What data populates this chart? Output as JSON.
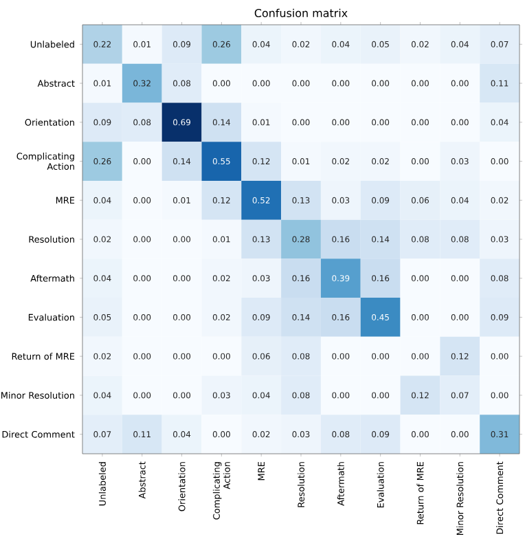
{
  "chart_data": {
    "type": "heatmap",
    "title": "Confusion matrix",
    "categories": [
      "Unlabeled",
      "Abstract",
      "Orientation",
      "Complicating Action",
      "MRE",
      "Resolution",
      "Aftermath",
      "Evaluation",
      "Return of MRE",
      "Minor Resolution",
      "Direct Comment"
    ],
    "y_categories": [
      "Unlabeled",
      "Abstract",
      "Orientation",
      "Complicating Action",
      "MRE",
      "Resolution",
      "Aftermath",
      "Evaluation",
      "Return of MRE",
      "Minor Resolution",
      "Direct Comment"
    ],
    "cells": [
      [
        0.22,
        0.01,
        0.09,
        0.26,
        0.04,
        0.02,
        0.04,
        0.05,
        0.02,
        0.04,
        0.07
      ],
      [
        0.01,
        0.32,
        0.08,
        0.0,
        0.0,
        0.0,
        0.0,
        0.0,
        0.0,
        0.0,
        0.11
      ],
      [
        0.09,
        0.08,
        0.69,
        0.14,
        0.01,
        0.0,
        0.0,
        0.0,
        0.0,
        0.0,
        0.04
      ],
      [
        0.26,
        0.0,
        0.14,
        0.55,
        0.12,
        0.01,
        0.02,
        0.02,
        0.0,
        0.03,
        0.0
      ],
      [
        0.04,
        0.0,
        0.01,
        0.12,
        0.52,
        0.13,
        0.03,
        0.09,
        0.06,
        0.04,
        0.02
      ],
      [
        0.02,
        0.0,
        0.0,
        0.01,
        0.13,
        0.28,
        0.16,
        0.14,
        0.08,
        0.08,
        0.03
      ],
      [
        0.04,
        0.0,
        0.0,
        0.02,
        0.03,
        0.16,
        0.39,
        0.16,
        0.0,
        0.0,
        0.08
      ],
      [
        0.05,
        0.0,
        0.0,
        0.02,
        0.09,
        0.14,
        0.16,
        0.45,
        0.0,
        0.0,
        0.09
      ],
      [
        0.02,
        0.0,
        0.0,
        0.0,
        0.06,
        0.08,
        0.0,
        0.0,
        0.0,
        0.12,
        0.0
      ],
      [
        0.04,
        0.0,
        0.0,
        0.03,
        0.04,
        0.08,
        0.0,
        0.0,
        0.12,
        0.07,
        0.0
      ],
      [
        0.07,
        0.11,
        0.04,
        0.0,
        0.02,
        0.03,
        0.08,
        0.09,
        0.0,
        0.0,
        0.31
      ]
    ],
    "cell_labels": [
      [
        "0.22",
        "0.01",
        "0.09",
        "0.26",
        "0.04",
        "0.02",
        "0.04",
        "0.05",
        "0.02",
        "0.04",
        "0.07"
      ],
      [
        "0.01",
        "0.32",
        "0.08",
        "0.00",
        "0.00",
        "0.00",
        "0.00",
        "0.00",
        "0.00",
        "0.00",
        "0.11"
      ],
      [
        "0.09",
        "0.08",
        "0.69",
        "0.14",
        "0.01",
        "0.00",
        "0.00",
        "0.00",
        "0.00",
        "0.00",
        "0.04"
      ],
      [
        "0.26",
        "0.00",
        "0.14",
        "0.55",
        "0.12",
        "0.01",
        "0.02",
        "0.02",
        "0.00",
        "0.03",
        "0.00"
      ],
      [
        "0.04",
        "0.00",
        "0.01",
        "0.12",
        "0.52",
        "0.13",
        "0.03",
        "0.09",
        "0.06",
        "0.04",
        "0.02"
      ],
      [
        "0.02",
        "0.00",
        "0.00",
        "0.01",
        "0.13",
        "0.28",
        "0.16",
        "0.14",
        "0.08",
        "0.08",
        "0.03"
      ],
      [
        "0.04",
        "0.00",
        "0.00",
        "0.02",
        "0.03",
        "0.16",
        "0.39",
        "0.16",
        "0.00",
        "0.00",
        "0.08"
      ],
      [
        "0.05",
        "0.00",
        "0.00",
        "0.02",
        "0.09",
        "0.14",
        "0.16",
        "0.45",
        "0.00",
        "0.00",
        "0.09"
      ],
      [
        "0.02",
        "0.00",
        "0.00",
        "0.00",
        "0.06",
        "0.08",
        "0.00",
        "0.00",
        "0.00",
        "0.12",
        "0.00"
      ],
      [
        "0.04",
        "0.00",
        "0.00",
        "0.03",
        "0.04",
        "0.08",
        "0.00",
        "0.00",
        "0.12",
        "0.07",
        "0.00"
      ],
      [
        "0.07",
        "0.11",
        "0.04",
        "0.00",
        "0.02",
        "0.03",
        "0.08",
        "0.09",
        "0.00",
        "0.00",
        "0.31"
      ]
    ]
  }
}
